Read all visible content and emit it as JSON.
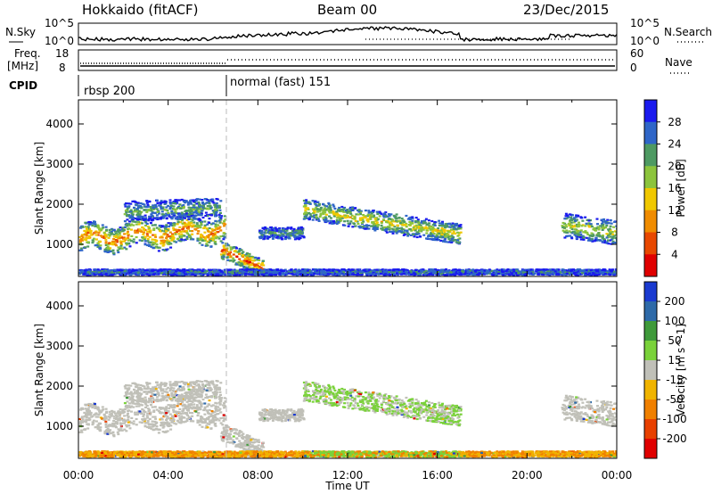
{
  "header": {
    "left": "Hokkaido (fitACF)",
    "center": "Beam 00",
    "right": "23/Dec/2015"
  },
  "panels": {
    "nsky": {
      "label": "N.Sky",
      "yticks": [
        "10^5",
        "10^0"
      ],
      "right_label": "N.Search",
      "right_ticks": [
        "10^5",
        "10^0"
      ]
    },
    "freq": {
      "label": "Freq.",
      "unit": "[MHz]",
      "yticks": [
        "18",
        "8"
      ],
      "right_label": "Nave",
      "right_ticks": [
        "60",
        "0"
      ]
    },
    "cpid": {
      "label": "CPID",
      "modes": [
        {
          "name": "rbsp 200",
          "start_hour": 0
        },
        {
          "name": "normal (fast) 151",
          "start_hour": 6.5
        }
      ]
    }
  },
  "chart_data": [
    {
      "type": "heatmap",
      "title": "",
      "xlabel": "Time UT",
      "ylabel": "Slant Range [km]",
      "xlim": [
        0,
        24
      ],
      "ylim": [
        200,
        4600
      ],
      "xtick_labels": [
        "00:00",
        "04:00",
        "08:00",
        "12:00",
        "16:00",
        "20:00",
        "00:00"
      ],
      "ytick_values": [
        1000,
        2000,
        3000,
        4000
      ],
      "colorbar_label": "Power [dB]",
      "colorbar_ticks": [
        4,
        8,
        12,
        16,
        20,
        24,
        28
      ],
      "colorbar_colors": [
        "#1a1aee",
        "#2f66c8",
        "#4e9a62",
        "#8cc43c",
        "#f0c800",
        "#f08c00",
        "#e84800",
        "#e00000"
      ],
      "grid": false
    },
    {
      "type": "heatmap",
      "title": "",
      "xlabel": "Time UT",
      "ylabel": "Slant Range [km]",
      "xlim": [
        0,
        24
      ],
      "ylim": [
        200,
        4600
      ],
      "xtick_labels": [
        "00:00",
        "04:00",
        "08:00",
        "12:00",
        "16:00",
        "20:00",
        "00:00"
      ],
      "ytick_values": [
        1000,
        2000,
        3000,
        4000
      ],
      "colorbar_label": "Velocity [m s^-1]",
      "colorbar_ticks": [
        "200",
        "100",
        "50",
        "15",
        "-15",
        "-50",
        "-100",
        "-200"
      ],
      "colorbar_colors": [
        "#1a3ad0",
        "#2e6aa8",
        "#3f9a3a",
        "#7ad23a",
        "#c0c0b8",
        "#f0b400",
        "#f08000",
        "#e84000",
        "#e00000"
      ],
      "grid": false
    }
  ],
  "footer": {
    "xlabel": "Time UT"
  }
}
